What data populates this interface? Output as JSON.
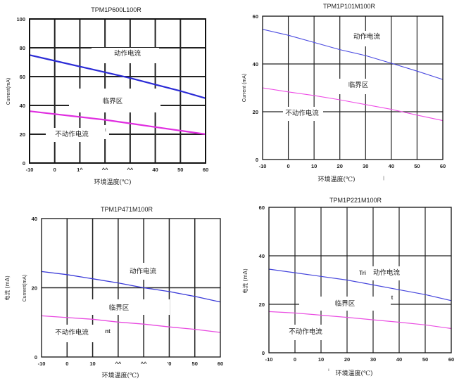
{
  "chart_data": [
    {
      "type": "line",
      "title": "TPM1P600L100R",
      "xlabel": "环境温度(℃)",
      "ylabel": "Current(mA)",
      "xlim": [
        -10,
        60
      ],
      "ylim": [
        0,
        100
      ],
      "x_ticks": [
        "-10",
        "0",
        "1^",
        "^^",
        "^^",
        "40",
        "50",
        "60"
      ],
      "y_ticks": [
        "0",
        "20",
        "40",
        "60",
        "80",
        "100"
      ],
      "grid": true,
      "x": [
        -10,
        0,
        10,
        20,
        30,
        40,
        50,
        60
      ],
      "series": [
        {
          "name": "动作电流",
          "color": "#2b2bd6",
          "values": [
            75,
            71,
            67,
            63,
            59,
            54.5,
            50,
            45
          ]
        },
        {
          "name": "不动作电流",
          "color": "#e02ee0",
          "values": [
            36,
            34,
            32,
            30,
            27.5,
            25,
            22.5,
            20
          ]
        }
      ],
      "annotations": [
        "动作电流",
        "临界区",
        "不动作电流"
      ],
      "fragments": [
        "t"
      ]
    },
    {
      "type": "line",
      "title": "TPM1P101M100R",
      "xlabel": "环境温度(℃)",
      "ylabel": "Current (mA)",
      "xlim": [
        -10,
        60
      ],
      "ylim": [
        0,
        60
      ],
      "x_ticks": [
        "-10",
        "0",
        "10",
        "20",
        "30",
        "40",
        "50",
        "60"
      ],
      "y_ticks": [
        "0",
        "20",
        "40",
        "60"
      ],
      "grid": true,
      "x": [
        -10,
        0,
        10,
        20,
        30,
        40,
        50,
        60
      ],
      "series": [
        {
          "name": "动作电流",
          "color": "#4a4ae0",
          "values": [
            54.5,
            52,
            49,
            46,
            43.5,
            40.3,
            37,
            33.5
          ]
        },
        {
          "name": "不动作电流",
          "color": "#ee4ee6",
          "values": [
            30,
            28.3,
            26.8,
            25,
            23,
            21,
            18.6,
            16.3
          ]
        }
      ],
      "annotations": [
        "动作电流",
        "临界区",
        "不动作电流"
      ],
      "fragments": [
        "|"
      ]
    },
    {
      "type": "line",
      "title": "TPM1P471M100R",
      "xlabel": "环境温度(℃)",
      "ylabel": "Current(mA)",
      "ylabel2": "电流 (mA)",
      "xlim": [
        -10,
        60
      ],
      "ylim": [
        0,
        40
      ],
      "x_ticks": [
        "-10",
        "0",
        "10",
        "^^",
        "^^",
        "'0",
        "50",
        "60"
      ],
      "y_ticks": [
        "0",
        "20",
        "40"
      ],
      "grid": true,
      "x": [
        -10,
        0,
        10,
        20,
        30,
        40,
        50,
        60
      ],
      "series": [
        {
          "name": "动作电流",
          "color": "#3a3ad8",
          "values": [
            24.7,
            23.8,
            22.6,
            21.4,
            20,
            18.9,
            17.5,
            15.9
          ]
        },
        {
          "name": "不动作电流",
          "color": "#e84ae0",
          "values": [
            11.9,
            11.4,
            10.9,
            10.1,
            9.5,
            8.7,
            8,
            7.1
          ]
        }
      ],
      "annotations": [
        "动作电流",
        "临界区",
        "不动作电流"
      ],
      "fragments": [
        "nt"
      ]
    },
    {
      "type": "line",
      "title": "TPM1P221M100R",
      "xlabel": "环境温度(℃)",
      "ylabel": "电流 (mA)",
      "xlim": [
        -10,
        60
      ],
      "ylim": [
        0,
        60
      ],
      "x_ticks": [
        "-10",
        "0",
        "10",
        "20",
        "30",
        "40",
        "50",
        "60"
      ],
      "y_ticks": [
        "0",
        "20",
        "40",
        "60"
      ],
      "grid": true,
      "x": [
        -10,
        0,
        10,
        20,
        30,
        40,
        50,
        60
      ],
      "series": [
        {
          "name": "动作电流",
          "color": "#4646dc",
          "values": [
            34.5,
            33,
            31.5,
            30,
            28,
            26,
            24,
            21.5
          ]
        },
        {
          "name": "不动作电流",
          "color": "#ea50e2",
          "values": [
            17,
            16.4,
            15.5,
            14.6,
            13.6,
            12.6,
            11.5,
            10
          ]
        }
      ],
      "annotations": [
        "Tri",
        "动作电流",
        "临界区",
        "不动作电流"
      ],
      "fragments": [
        "t",
        "ı"
      ]
    }
  ]
}
